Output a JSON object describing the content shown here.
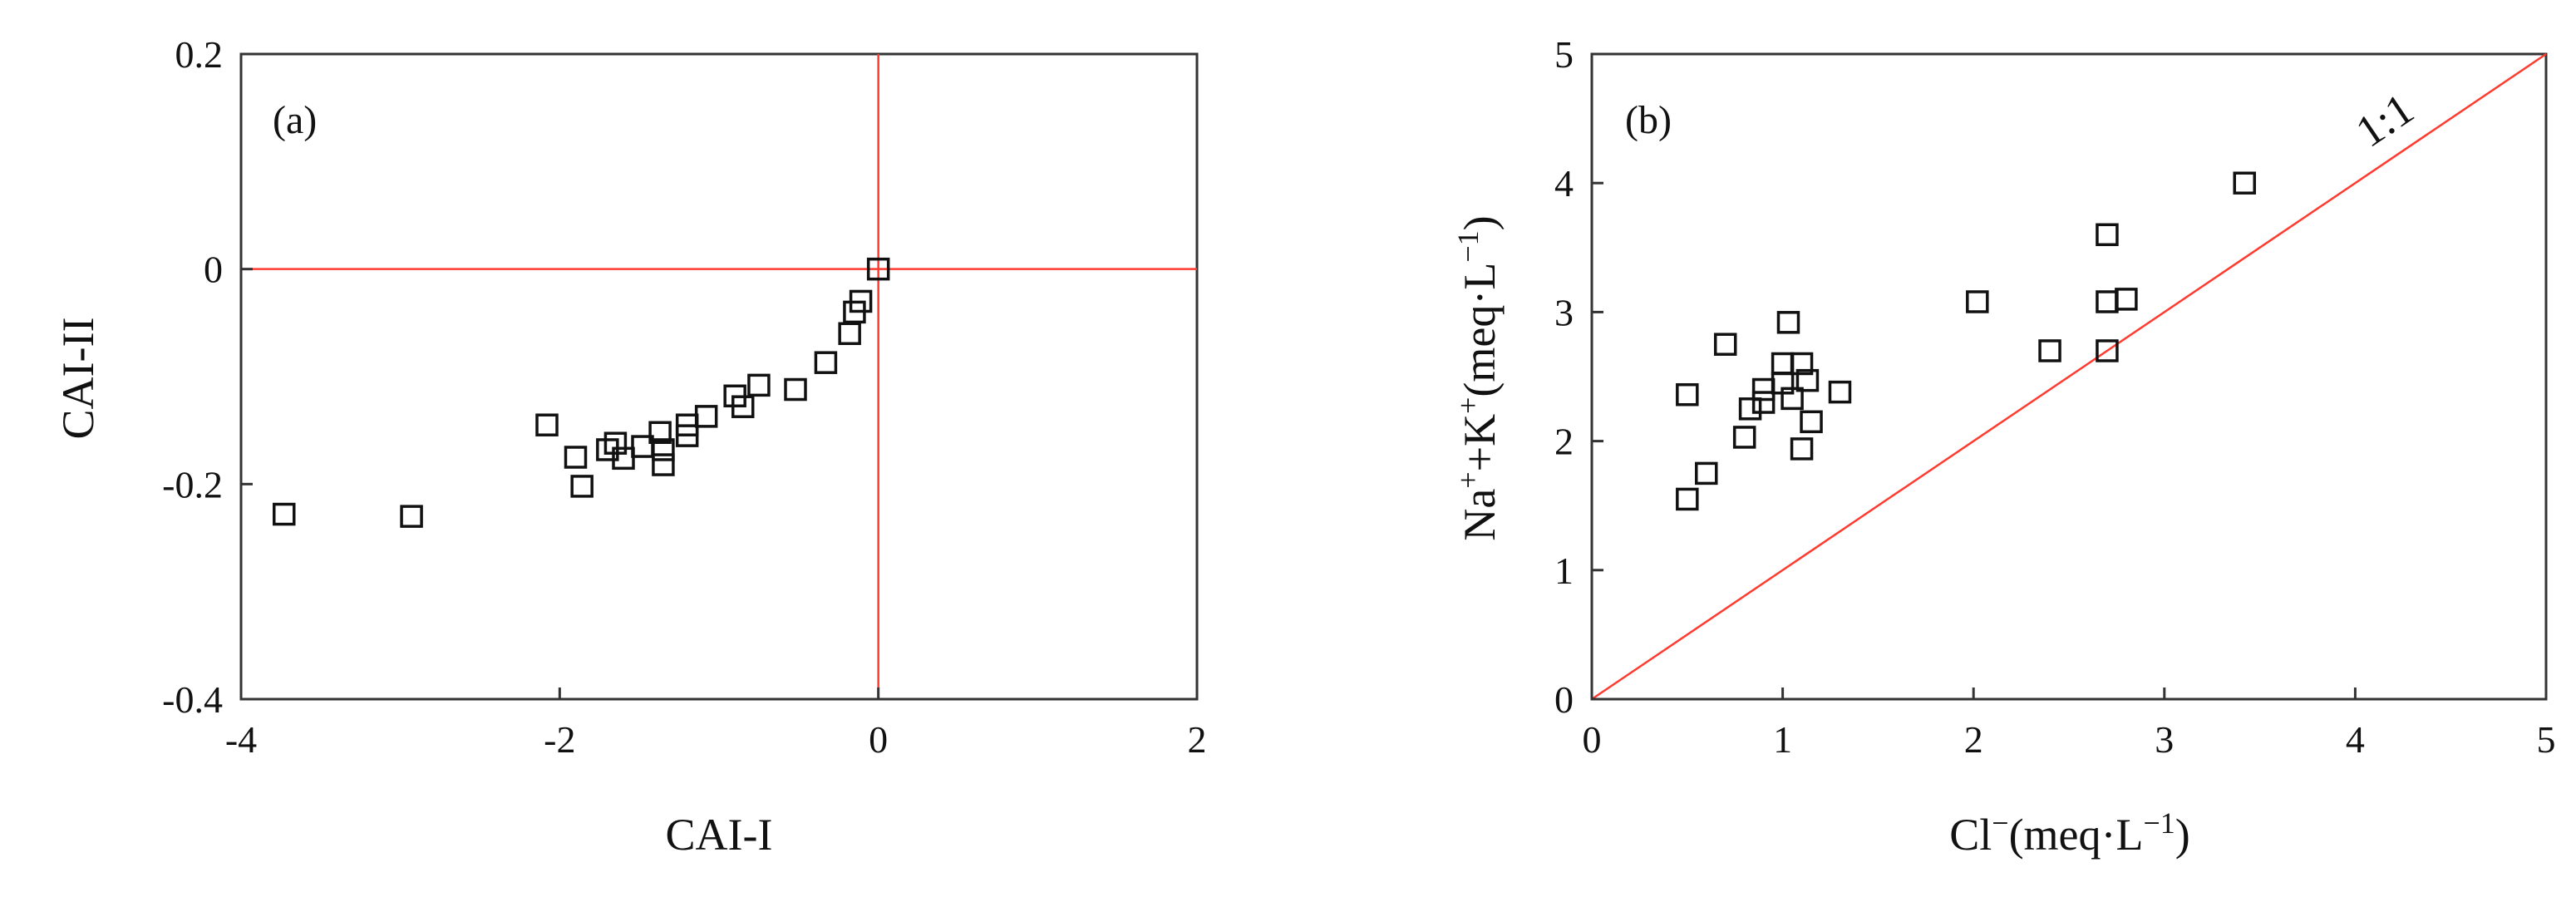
{
  "colors": {
    "reference_line": "#ff3b30",
    "marker": "#111111",
    "axes": "#333333"
  },
  "chart_data": [
    {
      "type": "scatter",
      "panel_label": "(a)",
      "xlabel": "CAI-I",
      "ylabel": "CAI-II",
      "xlim": [
        -4,
        2
      ],
      "ylim": [
        -0.4,
        0.2
      ],
      "xticks": [
        -4,
        -2,
        0,
        2
      ],
      "xtick_labels": [
        "-4",
        "-2",
        "0",
        "2"
      ],
      "yticks": [
        -0.4,
        -0.2,
        0,
        0.2
      ],
      "ytick_labels": [
        "-0.4",
        "-0.2",
        "0",
        "0.2"
      ],
      "reference_lines": {
        "horizontal_y": 0,
        "vertical_x": 0
      },
      "grid": false,
      "marker": "open-square",
      "points": [
        {
          "x": -3.73,
          "y": -0.228
        },
        {
          "x": -2.93,
          "y": -0.23
        },
        {
          "x": -2.08,
          "y": -0.145
        },
        {
          "x": -1.9,
          "y": -0.175
        },
        {
          "x": -1.86,
          "y": -0.202
        },
        {
          "x": -1.7,
          "y": -0.168
        },
        {
          "x": -1.65,
          "y": -0.162
        },
        {
          "x": -1.6,
          "y": -0.176
        },
        {
          "x": -1.48,
          "y": -0.165
        },
        {
          "x": -1.37,
          "y": -0.152
        },
        {
          "x": -1.35,
          "y": -0.168
        },
        {
          "x": -1.35,
          "y": -0.182
        },
        {
          "x": -1.2,
          "y": -0.145
        },
        {
          "x": -1.2,
          "y": -0.155
        },
        {
          "x": -1.08,
          "y": -0.137
        },
        {
          "x": -0.9,
          "y": -0.118
        },
        {
          "x": -0.85,
          "y": -0.128
        },
        {
          "x": -0.75,
          "y": -0.108
        },
        {
          "x": -0.52,
          "y": -0.112
        },
        {
          "x": -0.33,
          "y": -0.087
        },
        {
          "x": -0.18,
          "y": -0.06
        },
        {
          "x": -0.15,
          "y": -0.04
        },
        {
          "x": -0.11,
          "y": -0.03
        },
        {
          "x": 0.0,
          "y": 0.0
        }
      ]
    },
    {
      "type": "scatter",
      "panel_label": "(b)",
      "xlabel_parts": [
        "Cl",
        "−",
        "(meq·L",
        "−1",
        ")"
      ],
      "ylabel_parts": [
        "Na",
        "+",
        "+K",
        "+",
        "(meq·L",
        "−1",
        ")"
      ],
      "xlim": [
        0,
        5
      ],
      "ylim": [
        0,
        5
      ],
      "xticks": [
        0,
        1,
        2,
        3,
        4,
        5
      ],
      "xtick_labels": [
        "0",
        "1",
        "2",
        "3",
        "4",
        "5"
      ],
      "yticks": [
        0,
        1,
        2,
        3,
        4,
        5
      ],
      "ytick_labels": [
        "0",
        "1",
        "2",
        "3",
        "4",
        "5"
      ],
      "reference_line": {
        "from": [
          0,
          0
        ],
        "to": [
          5,
          5
        ],
        "label": "1:1"
      },
      "grid": false,
      "marker": "open-square",
      "points": [
        {
          "x": 0.5,
          "y": 2.36
        },
        {
          "x": 0.5,
          "y": 1.55
        },
        {
          "x": 0.6,
          "y": 1.75
        },
        {
          "x": 0.7,
          "y": 2.75
        },
        {
          "x": 0.8,
          "y": 2.03
        },
        {
          "x": 0.83,
          "y": 2.25
        },
        {
          "x": 0.9,
          "y": 2.3
        },
        {
          "x": 0.9,
          "y": 2.4
        },
        {
          "x": 1.0,
          "y": 2.45
        },
        {
          "x": 1.0,
          "y": 2.6
        },
        {
          "x": 1.03,
          "y": 2.92
        },
        {
          "x": 1.05,
          "y": 2.33
        },
        {
          "x": 1.1,
          "y": 2.6
        },
        {
          "x": 1.1,
          "y": 1.94
        },
        {
          "x": 1.13,
          "y": 2.47
        },
        {
          "x": 1.15,
          "y": 2.15
        },
        {
          "x": 1.3,
          "y": 2.38
        },
        {
          "x": 2.02,
          "y": 3.08
        },
        {
          "x": 2.4,
          "y": 2.7
        },
        {
          "x": 2.7,
          "y": 3.6
        },
        {
          "x": 2.7,
          "y": 3.08
        },
        {
          "x": 2.7,
          "y": 2.7
        },
        {
          "x": 2.8,
          "y": 3.1
        },
        {
          "x": 3.42,
          "y": 4.0
        }
      ]
    }
  ]
}
